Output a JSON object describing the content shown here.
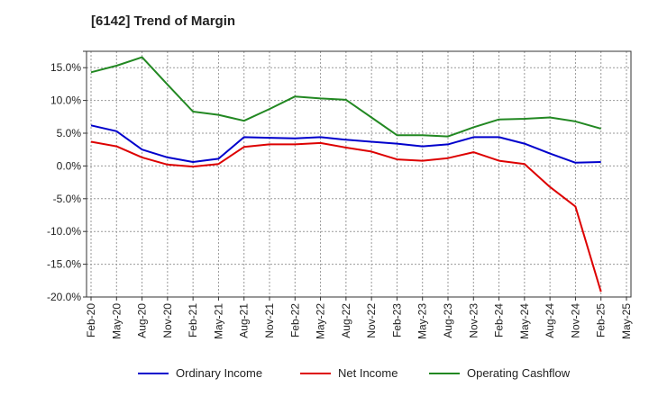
{
  "title": "[6142]  Trend of Margin",
  "chart_data": {
    "type": "line",
    "title": "[6142]  Trend of Margin",
    "xlabel": "",
    "ylabel": "",
    "ylim": [
      -20,
      17.5
    ],
    "yticks": [
      17.5,
      15,
      10,
      5,
      0,
      -5,
      -10,
      -15,
      -20
    ],
    "ytick_labels": [
      "",
      "15.0%",
      "10.0%",
      "5.0%",
      "0.0%",
      "-5.0%",
      "-10.0%",
      "-15.0%",
      "-20.0%"
    ],
    "x": [
      "Feb-20",
      "May-20",
      "Aug-20",
      "Nov-20",
      "Feb-21",
      "May-21",
      "Aug-21",
      "Nov-21",
      "Feb-22",
      "May-22",
      "Aug-22",
      "Nov-22",
      "Feb-23",
      "May-23",
      "Aug-23",
      "Nov-23",
      "Feb-24",
      "May-24",
      "Aug-24",
      "Nov-24",
      "Feb-25",
      "May-25"
    ],
    "grid": true,
    "legend_position": "bottom",
    "series": [
      {
        "name": "Ordinary Income",
        "color": "#0000cc",
        "values": [
          6.2,
          5.3,
          2.5,
          1.3,
          0.6,
          1.1,
          4.4,
          4.3,
          4.2,
          4.4,
          4.0,
          3.7,
          3.4,
          3.0,
          3.3,
          4.4,
          4.4,
          3.4,
          1.9,
          0.5,
          0.6,
          null
        ]
      },
      {
        "name": "Net Income",
        "color": "#dd0000",
        "values": [
          3.7,
          3.0,
          1.3,
          0.2,
          -0.1,
          0.3,
          2.9,
          3.3,
          3.3,
          3.5,
          2.8,
          2.2,
          1.0,
          0.8,
          1.2,
          2.1,
          0.8,
          0.3,
          -3.2,
          -6.2,
          -19.2,
          null
        ]
      },
      {
        "name": "Operating Cashflow",
        "color": "#228822",
        "values": [
          14.3,
          15.3,
          16.6,
          12.4,
          8.3,
          7.8,
          6.9,
          8.7,
          10.6,
          10.3,
          10.1,
          7.4,
          4.7,
          4.7,
          4.5,
          5.9,
          7.1,
          7.2,
          7.4,
          6.8,
          5.7,
          null
        ]
      }
    ]
  }
}
